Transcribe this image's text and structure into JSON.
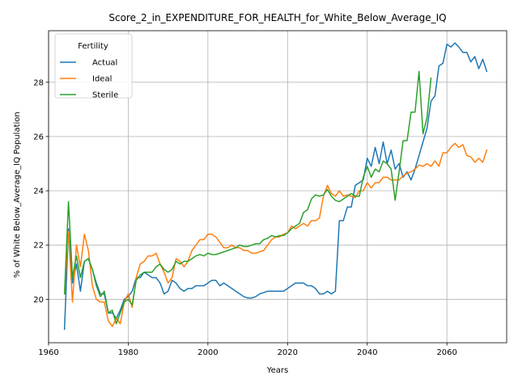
{
  "chart_data": {
    "type": "line",
    "title": "Score_2_in_EXPENDITURE_FOR_HEALTH_for_White_Below_Average_IQ",
    "xlabel": "Years",
    "ylabel": "% of White Below_Average_IQ Population",
    "xlim": [
      1960,
      2075
    ],
    "ylim": [
      18.4,
      29.9
    ],
    "xticks": [
      1960,
      1980,
      2000,
      2020,
      2040,
      2060
    ],
    "yticks": [
      20,
      22,
      24,
      26,
      28
    ],
    "grid": true,
    "legend": {
      "title": "Fertility",
      "placement": "top-left"
    },
    "series": [
      {
        "name": "Actual",
        "color": "#1f77b4",
        "points": [
          [
            1964,
            18.9
          ],
          [
            1965,
            22.6
          ],
          [
            1966,
            20.6
          ],
          [
            1967,
            21.3
          ],
          [
            1968,
            20.3
          ],
          [
            1969,
            21.4
          ],
          [
            1970,
            21.5
          ],
          [
            1971,
            21.1
          ],
          [
            1972,
            20.6
          ],
          [
            1973,
            20.2
          ],
          [
            1974,
            20.2
          ],
          [
            1975,
            19.5
          ],
          [
            1976,
            19.5
          ],
          [
            1977,
            19.3
          ],
          [
            1978,
            19.6
          ],
          [
            1979,
            20.0
          ],
          [
            1980,
            20.1
          ],
          [
            1981,
            20.3
          ],
          [
            1982,
            20.8
          ],
          [
            1983,
            20.8
          ],
          [
            1984,
            21.0
          ],
          [
            1985,
            20.9
          ],
          [
            1986,
            20.8
          ],
          [
            1987,
            20.8
          ],
          [
            1988,
            20.6
          ],
          [
            1989,
            20.2
          ],
          [
            1990,
            20.3
          ],
          [
            1991,
            20.7
          ],
          [
            1992,
            20.6
          ],
          [
            1993,
            20.4
          ],
          [
            1994,
            20.3
          ],
          [
            1995,
            20.4
          ],
          [
            1996,
            20.4
          ],
          [
            1997,
            20.5
          ],
          [
            1998,
            20.5
          ],
          [
            1999,
            20.5
          ],
          [
            2000,
            20.6
          ],
          [
            2001,
            20.7
          ],
          [
            2002,
            20.7
          ],
          [
            2003,
            20.5
          ],
          [
            2004,
            20.6
          ],
          [
            2005,
            20.5
          ],
          [
            2006,
            20.4
          ],
          [
            2007,
            20.3
          ],
          [
            2008,
            20.2
          ],
          [
            2009,
            20.1
          ],
          [
            2010,
            20.05
          ],
          [
            2011,
            20.05
          ],
          [
            2012,
            20.1
          ],
          [
            2013,
            20.2
          ],
          [
            2014,
            20.25
          ],
          [
            2015,
            20.3
          ],
          [
            2016,
            20.3
          ],
          [
            2017,
            20.3
          ],
          [
            2018,
            20.3
          ],
          [
            2019,
            20.3
          ],
          [
            2020,
            20.4
          ],
          [
            2021,
            20.5
          ],
          [
            2022,
            20.6
          ],
          [
            2023,
            20.6
          ],
          [
            2024,
            20.6
          ],
          [
            2025,
            20.5
          ],
          [
            2026,
            20.5
          ],
          [
            2027,
            20.4
          ],
          [
            2028,
            20.2
          ],
          [
            2029,
            20.2
          ],
          [
            2030,
            20.3
          ],
          [
            2031,
            20.2
          ],
          [
            2032,
            20.3
          ],
          [
            2033,
            22.9
          ],
          [
            2034,
            22.9
          ],
          [
            2035,
            23.4
          ],
          [
            2036,
            23.4
          ],
          [
            2037,
            24.2
          ],
          [
            2038,
            24.3
          ],
          [
            2039,
            24.4
          ],
          [
            2040,
            25.2
          ],
          [
            2041,
            24.9
          ],
          [
            2042,
            25.6
          ],
          [
            2043,
            25.0
          ],
          [
            2044,
            25.8
          ],
          [
            2045,
            25.0
          ],
          [
            2046,
            25.5
          ],
          [
            2047,
            24.8
          ],
          [
            2048,
            25.0
          ],
          [
            2049,
            24.5
          ],
          [
            2050,
            24.7
          ],
          [
            2051,
            24.4
          ],
          [
            2052,
            24.8
          ],
          [
            2053,
            25.3
          ],
          [
            2054,
            25.8
          ],
          [
            2055,
            26.3
          ],
          [
            2056,
            27.3
          ],
          [
            2057,
            27.5
          ],
          [
            2058,
            28.6
          ],
          [
            2059,
            28.7
          ],
          [
            2060,
            29.4
          ],
          [
            2061,
            29.3
          ],
          [
            2062,
            29.45
          ],
          [
            2063,
            29.3
          ],
          [
            2064,
            29.1
          ],
          [
            2065,
            29.1
          ],
          [
            2066,
            28.75
          ],
          [
            2067,
            28.95
          ],
          [
            2068,
            28.5
          ],
          [
            2069,
            28.85
          ],
          [
            2070,
            28.4
          ]
        ]
      },
      {
        "name": "Ideal",
        "color": "#ff7f0e",
        "points": [
          [
            1964,
            20.2
          ],
          [
            1965,
            22.5
          ],
          [
            1966,
            19.9
          ],
          [
            1967,
            22.0
          ],
          [
            1968,
            21.2
          ],
          [
            1969,
            22.4
          ],
          [
            1970,
            21.8
          ],
          [
            1971,
            20.5
          ],
          [
            1972,
            20.0
          ],
          [
            1973,
            19.9
          ],
          [
            1974,
            19.9
          ],
          [
            1975,
            19.2
          ],
          [
            1976,
            19.0
          ],
          [
            1977,
            19.3
          ],
          [
            1978,
            19.1
          ],
          [
            1979,
            19.9
          ],
          [
            1980,
            20.2
          ],
          [
            1981,
            19.7
          ],
          [
            1982,
            20.8
          ],
          [
            1983,
            21.3
          ],
          [
            1984,
            21.4
          ],
          [
            1985,
            21.6
          ],
          [
            1986,
            21.6
          ],
          [
            1987,
            21.7
          ],
          [
            1988,
            21.3
          ],
          [
            1989,
            21.0
          ],
          [
            1990,
            20.6
          ],
          [
            1991,
            20.8
          ],
          [
            1992,
            21.5
          ],
          [
            1993,
            21.4
          ],
          [
            1994,
            21.2
          ],
          [
            1995,
            21.4
          ],
          [
            1996,
            21.8
          ],
          [
            1997,
            22.0
          ],
          [
            1998,
            22.2
          ],
          [
            1999,
            22.2
          ],
          [
            2000,
            22.4
          ],
          [
            2001,
            22.4
          ],
          [
            2002,
            22.3
          ],
          [
            2003,
            22.1
          ],
          [
            2004,
            21.9
          ],
          [
            2005,
            21.9
          ],
          [
            2006,
            22.0
          ],
          [
            2007,
            21.9
          ],
          [
            2008,
            21.9
          ],
          [
            2009,
            21.8
          ],
          [
            2010,
            21.8
          ],
          [
            2011,
            21.7
          ],
          [
            2012,
            21.7
          ],
          [
            2013,
            21.75
          ],
          [
            2014,
            21.8
          ],
          [
            2015,
            22.0
          ],
          [
            2016,
            22.2
          ],
          [
            2017,
            22.3
          ],
          [
            2018,
            22.3
          ],
          [
            2019,
            22.4
          ],
          [
            2020,
            22.45
          ],
          [
            2021,
            22.7
          ],
          [
            2022,
            22.6
          ],
          [
            2023,
            22.7
          ],
          [
            2024,
            22.8
          ],
          [
            2025,
            22.7
          ],
          [
            2026,
            22.9
          ],
          [
            2027,
            22.9
          ],
          [
            2028,
            23.0
          ],
          [
            2029,
            23.8
          ],
          [
            2030,
            24.2
          ],
          [
            2031,
            23.9
          ],
          [
            2032,
            23.8
          ],
          [
            2033,
            24.0
          ],
          [
            2034,
            23.8
          ],
          [
            2035,
            23.85
          ],
          [
            2036,
            23.8
          ],
          [
            2037,
            23.75
          ],
          [
            2038,
            24.0
          ],
          [
            2039,
            24.0
          ],
          [
            2040,
            24.3
          ],
          [
            2041,
            24.1
          ],
          [
            2042,
            24.3
          ],
          [
            2043,
            24.3
          ],
          [
            2044,
            24.5
          ],
          [
            2045,
            24.5
          ],
          [
            2046,
            24.4
          ],
          [
            2047,
            24.4
          ],
          [
            2048,
            24.4
          ],
          [
            2049,
            24.55
          ],
          [
            2050,
            24.65
          ],
          [
            2051,
            24.7
          ],
          [
            2052,
            24.8
          ],
          [
            2053,
            24.95
          ],
          [
            2054,
            24.9
          ],
          [
            2055,
            25.0
          ],
          [
            2056,
            24.9
          ],
          [
            2057,
            25.1
          ],
          [
            2058,
            24.9
          ],
          [
            2059,
            25.4
          ],
          [
            2060,
            25.4
          ],
          [
            2061,
            25.6
          ],
          [
            2062,
            25.75
          ],
          [
            2063,
            25.6
          ],
          [
            2064,
            25.7
          ],
          [
            2065,
            25.3
          ],
          [
            2066,
            25.25
          ],
          [
            2067,
            25.05
          ],
          [
            2068,
            25.2
          ],
          [
            2069,
            25.05
          ],
          [
            2070,
            25.5
          ]
        ]
      },
      {
        "name": "Sterile",
        "color": "#2ca02c",
        "points": [
          [
            1964,
            20.2
          ],
          [
            1965,
            23.6
          ],
          [
            1966,
            20.8
          ],
          [
            1967,
            21.6
          ],
          [
            1968,
            20.8
          ],
          [
            1969,
            21.4
          ],
          [
            1970,
            21.5
          ],
          [
            1971,
            21.1
          ],
          [
            1972,
            20.5
          ],
          [
            1973,
            20.1
          ],
          [
            1974,
            20.3
          ],
          [
            1975,
            19.5
          ],
          [
            1976,
            19.6
          ],
          [
            1977,
            19.1
          ],
          [
            1978,
            19.5
          ],
          [
            1979,
            19.9
          ],
          [
            1980,
            20.0
          ],
          [
            1981,
            19.8
          ],
          [
            1982,
            20.7
          ],
          [
            1983,
            20.9
          ],
          [
            1984,
            21.0
          ],
          [
            1985,
            21.0
          ],
          [
            1986,
            21.0
          ],
          [
            1987,
            21.2
          ],
          [
            1988,
            21.3
          ],
          [
            1989,
            21.1
          ],
          [
            1990,
            21.0
          ],
          [
            1991,
            21.1
          ],
          [
            1992,
            21.4
          ],
          [
            1993,
            21.3
          ],
          [
            1994,
            21.4
          ],
          [
            1995,
            21.4
          ],
          [
            1996,
            21.5
          ],
          [
            1997,
            21.6
          ],
          [
            1998,
            21.65
          ],
          [
            1999,
            21.6
          ],
          [
            2000,
            21.7
          ],
          [
            2001,
            21.65
          ],
          [
            2002,
            21.65
          ],
          [
            2003,
            21.7
          ],
          [
            2004,
            21.75
          ],
          [
            2005,
            21.8
          ],
          [
            2006,
            21.85
          ],
          [
            2007,
            21.9
          ],
          [
            2008,
            22.0
          ],
          [
            2009,
            21.95
          ],
          [
            2010,
            21.95
          ],
          [
            2011,
            22.0
          ],
          [
            2012,
            22.05
          ],
          [
            2013,
            22.05
          ],
          [
            2014,
            22.2
          ],
          [
            2015,
            22.25
          ],
          [
            2016,
            22.35
          ],
          [
            2017,
            22.3
          ],
          [
            2018,
            22.35
          ],
          [
            2019,
            22.35
          ],
          [
            2020,
            22.45
          ],
          [
            2021,
            22.6
          ],
          [
            2022,
            22.7
          ],
          [
            2023,
            22.8
          ],
          [
            2024,
            23.2
          ],
          [
            2025,
            23.3
          ],
          [
            2026,
            23.7
          ],
          [
            2027,
            23.85
          ],
          [
            2028,
            23.8
          ],
          [
            2029,
            23.85
          ],
          [
            2030,
            24.05
          ],
          [
            2031,
            23.8
          ],
          [
            2032,
            23.65
          ],
          [
            2033,
            23.6
          ],
          [
            2034,
            23.7
          ],
          [
            2035,
            23.8
          ],
          [
            2036,
            23.9
          ],
          [
            2037,
            23.8
          ],
          [
            2038,
            23.8
          ],
          [
            2039,
            24.5
          ],
          [
            2040,
            24.9
          ],
          [
            2041,
            24.5
          ],
          [
            2042,
            24.8
          ],
          [
            2043,
            24.7
          ],
          [
            2044,
            25.1
          ],
          [
            2045,
            25.0
          ],
          [
            2046,
            24.8
          ],
          [
            2047,
            23.65
          ],
          [
            2048,
            24.7
          ],
          [
            2049,
            25.85
          ],
          [
            2050,
            25.85
          ],
          [
            2051,
            26.9
          ],
          [
            2052,
            26.9
          ],
          [
            2053,
            28.4
          ],
          [
            2054,
            26.1
          ],
          [
            2055,
            26.7
          ],
          [
            2056,
            28.15
          ]
        ]
      }
    ]
  }
}
